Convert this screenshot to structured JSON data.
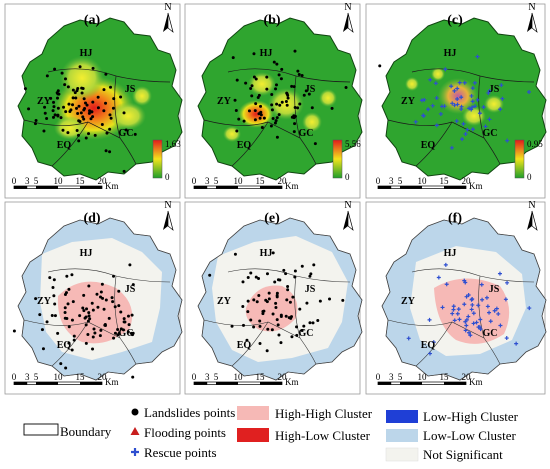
{
  "north_label": "N",
  "panels": [
    {
      "id": "a",
      "label": "(a)",
      "mode": "density",
      "legend_max": "1.63",
      "legend_min": "0",
      "points": "landslides"
    },
    {
      "id": "b",
      "label": "(b)",
      "mode": "density",
      "legend_max": "5.56",
      "legend_min": "0",
      "points": "flooding"
    },
    {
      "id": "c",
      "label": "(c)",
      "mode": "density",
      "legend_max": "0.95",
      "legend_min": "0",
      "points": "rescue"
    },
    {
      "id": "d",
      "label": "(d)",
      "mode": "cluster",
      "points": "landslides"
    },
    {
      "id": "e",
      "label": "(e)",
      "mode": "cluster",
      "points": "flooding"
    },
    {
      "id": "f",
      "label": "(f)",
      "mode": "cluster",
      "points": "rescue"
    }
  ],
  "districts": [
    "HJ",
    "ZY",
    "JS",
    "EQ",
    "GC"
  ],
  "scale_bar": {
    "ticks": [
      "0",
      "3",
      "5",
      "10",
      "15",
      "20"
    ],
    "unit": "Km"
  },
  "legend": {
    "boundary": "Boundary",
    "landslides": "Landslides points",
    "flooding": "Flooding points",
    "rescue": "Rescue points",
    "high_high": "High-High Cluster",
    "high_low": "High-Low Cluster",
    "low_high": "Low-High Cluster",
    "low_low": "Low-Low Cluster",
    "not_significant": "Not Significant"
  },
  "colors": {
    "map_green": "#2fa52f",
    "hot_red": "#e21b1b",
    "hot_yellow": "#f2e41c",
    "high_high": "#f6b9b6",
    "high_low": "#e02020",
    "low_high": "#1f3fd6",
    "low_low": "#bcd6ea",
    "not_significant": "#f3f3ee",
    "flood_marker": "#c81e1e",
    "rescue_marker": "#2e4fd0"
  }
}
